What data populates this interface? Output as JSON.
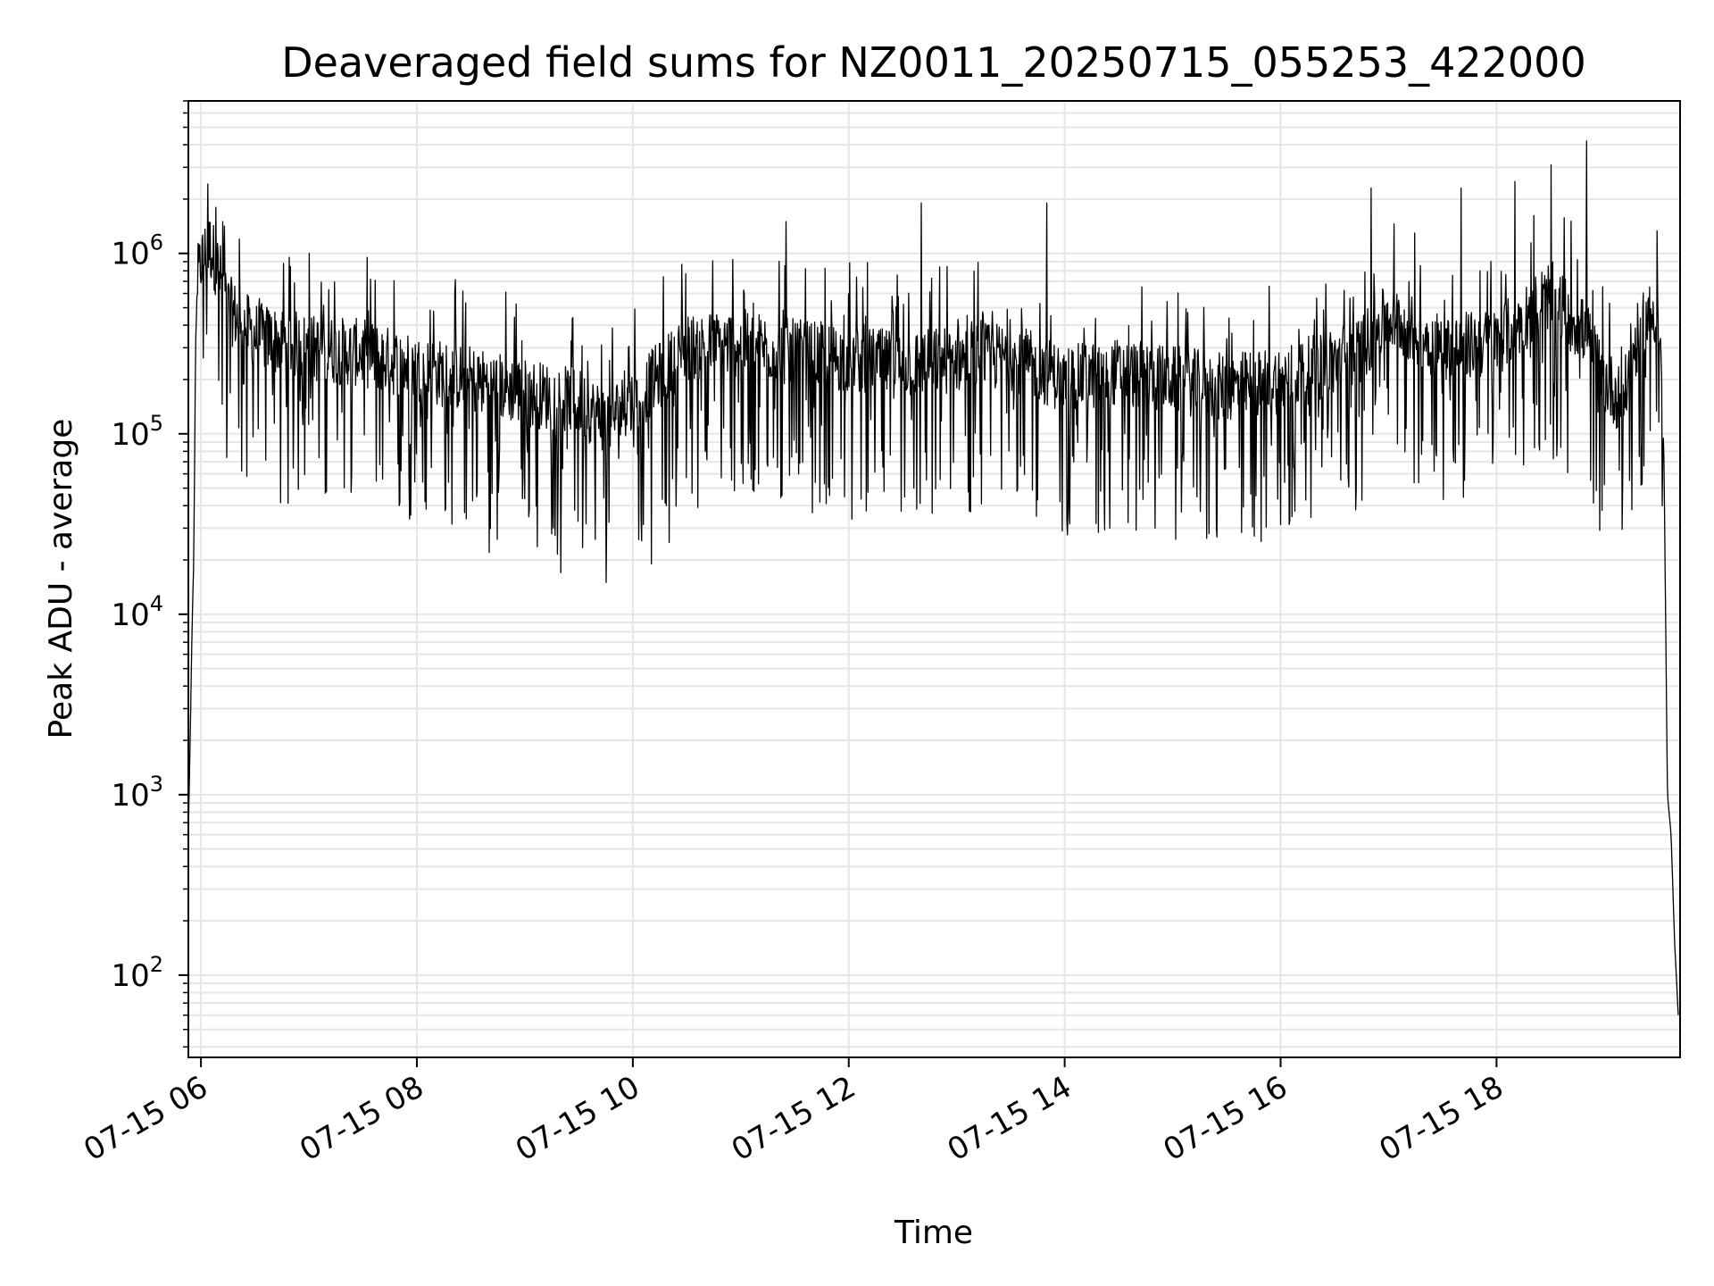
{
  "chart_data": {
    "type": "line",
    "title": "Deaveraged field sums for NZ0011_20250715_055253_422000",
    "xlabel": "Time",
    "ylabel": "Peak ADU - average",
    "yscale": "log",
    "ylim": [
      35,
      7000000
    ],
    "xlim": [
      "07-15 05:53",
      "07-15 19:42"
    ],
    "grid": true,
    "line_color": "#000000",
    "grid_color": "#e6e6e6",
    "x_ticks": [
      {
        "label": "07-15 06",
        "value": "07-15 06:00"
      },
      {
        "label": "07-15 08",
        "value": "07-15 08:00"
      },
      {
        "label": "07-15 10",
        "value": "07-15 10:00"
      },
      {
        "label": "07-15 12",
        "value": "07-15 12:00"
      },
      {
        "label": "07-15 14",
        "value": "07-15 14:00"
      },
      {
        "label": "07-15 16",
        "value": "07-15 16:00"
      },
      {
        "label": "07-15 18",
        "value": "07-15 18:00"
      }
    ],
    "y_ticks": [
      {
        "base": "10",
        "exp": "2",
        "value": 100
      },
      {
        "base": "10",
        "exp": "3",
        "value": 1000
      },
      {
        "base": "10",
        "exp": "4",
        "value": 10000
      },
      {
        "base": "10",
        "exp": "5",
        "value": 100000
      },
      {
        "base": "10",
        "exp": "6",
        "value": 1000000
      }
    ],
    "series": [
      {
        "points": [
          [
            "07-15 05:53",
            600
          ],
          [
            "07-15 05:54",
            2000
          ],
          [
            "07-15 05:55",
            8000
          ],
          [
            "07-15 05:56",
            20000
          ],
          [
            "07-15 05:57",
            300000
          ],
          [
            "07-15 05:58",
            700000
          ],
          [
            "07-15 06:00",
            900000
          ],
          [
            "07-15 06:05",
            1100000
          ],
          [
            "07-15 06:10",
            800000
          ],
          [
            "07-15 06:15",
            500000
          ],
          [
            "07-15 06:30",
            350000
          ],
          [
            "07-15 07:00",
            300000
          ],
          [
            "07-15 07:30",
            280000
          ],
          [
            "07-15 08:00",
            230000
          ],
          [
            "07-15 08:30",
            200000
          ],
          [
            "07-15 09:00",
            170000
          ],
          [
            "07-15 09:30",
            150000
          ],
          [
            "07-15 09:45",
            120000
          ],
          [
            "07-15 10:00",
            150000
          ],
          [
            "07-15 10:30",
            300000
          ],
          [
            "07-15 11:00",
            320000
          ],
          [
            "07-15 11:30",
            280000
          ],
          [
            "07-15 12:00",
            260000
          ],
          [
            "07-15 12:30",
            240000
          ],
          [
            "07-15 13:00",
            260000
          ],
          [
            "07-15 13:30",
            270000
          ],
          [
            "07-15 14:00",
            200000
          ],
          [
            "07-15 14:30",
            220000
          ],
          [
            "07-15 15:00",
            200000
          ],
          [
            "07-15 15:30",
            180000
          ],
          [
            "07-15 16:00",
            200000
          ],
          [
            "07-15 16:30",
            250000
          ],
          [
            "07-15 16:45",
            300000
          ],
          [
            "07-15 17:00",
            450000
          ],
          [
            "07-15 17:30",
            300000
          ],
          [
            "07-15 18:00",
            320000
          ],
          [
            "07-15 18:30",
            600000
          ],
          [
            "07-15 18:50",
            350000
          ],
          [
            "07-15 19:00",
            200000
          ],
          [
            "07-15 19:10",
            150000
          ],
          [
            "07-15 19:20",
            400000
          ],
          [
            "07-15 19:30",
            500000
          ],
          [
            "07-15 19:33",
            80000
          ],
          [
            "07-15 19:35",
            1000
          ],
          [
            "07-15 19:37",
            600
          ],
          [
            "07-15 19:39",
            150
          ],
          [
            "07-15 19:41",
            60
          ]
        ],
        "peaks": [
          [
            "07-15 06:08",
            1800000
          ],
          [
            "07-15 06:12",
            1500000
          ],
          [
            "07-15 07:00",
            1000000
          ],
          [
            "07-15 07:50",
            40000
          ],
          [
            "07-15 08:40",
            22000
          ],
          [
            "07-15 09:20",
            17000
          ],
          [
            "07-15 09:45",
            15000
          ],
          [
            "07-15 10:10",
            19000
          ],
          [
            "07-15 10:20",
            25000
          ],
          [
            "07-15 11:25",
            1500000
          ],
          [
            "07-15 12:40",
            1900000
          ],
          [
            "07-15 13:50",
            1900000
          ],
          [
            "07-15 14:50",
            30000
          ],
          [
            "07-15 15:20",
            28000
          ],
          [
            "07-15 16:05",
            33000
          ],
          [
            "07-15 16:50",
            2300000
          ],
          [
            "07-15 17:40",
            2300000
          ],
          [
            "07-15 18:10",
            2500000
          ],
          [
            "07-15 18:30",
            3100000
          ],
          [
            "07-15 18:50",
            4200000
          ],
          [
            "07-15 19:15",
            38000
          ]
        ]
      }
    ]
  }
}
